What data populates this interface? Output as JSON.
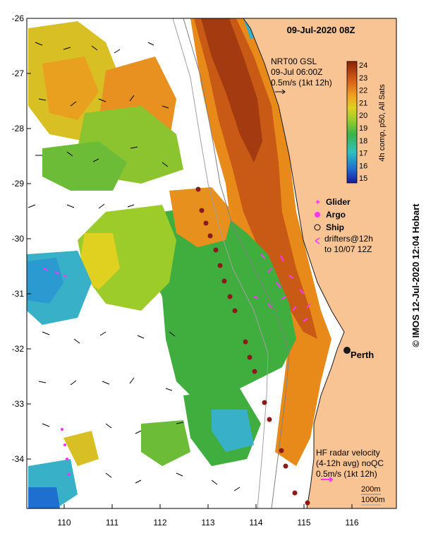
{
  "map": {
    "title": "09-Jul-2020 08Z",
    "product_lines": [
      "NRT00 GSL",
      "09-Jul 06:00Z",
      "0.5m/s (1kt 12h)"
    ],
    "colorbar_caption": "4h comp, p50, All Sats",
    "colorbar_ticks": [
      "24",
      "23",
      "22",
      "21",
      "20",
      "19",
      "18",
      "17",
      "16",
      "15"
    ],
    "lat_labels": [
      "-26",
      "-27",
      "-28",
      "-29",
      "-30",
      "-31",
      "-32",
      "-33",
      "-34"
    ],
    "lon_labels": [
      "110",
      "111",
      "112",
      "113",
      "114",
      "115",
      "116"
    ],
    "legend": {
      "glider": "Glider",
      "argo": "Argo",
      "ship": "Ship",
      "drifters_line1": "drifters@12h",
      "drifters_line2": "to 10/07 12Z"
    },
    "city": "Perth",
    "hf_radar_lines": [
      "HF radar velocity",
      "(4-12h avg) noQC",
      "0.5m/s (1kt 12h)"
    ],
    "contour_labels": [
      "200m",
      "1000m"
    ],
    "credit": "©  IMOS 12-Jul-2020 12:04 Hobart",
    "colors": {
      "land": "#f9c493",
      "ocean_nodata": "#ffffff",
      "ship_track": "#8b1a1a",
      "drifter": "#ff33ff",
      "sst_warm": "#a33a10",
      "sst_mid": "#e88a1a",
      "sst_green": "#3fae3f",
      "sst_cool": "#37b0c8"
    }
  }
}
